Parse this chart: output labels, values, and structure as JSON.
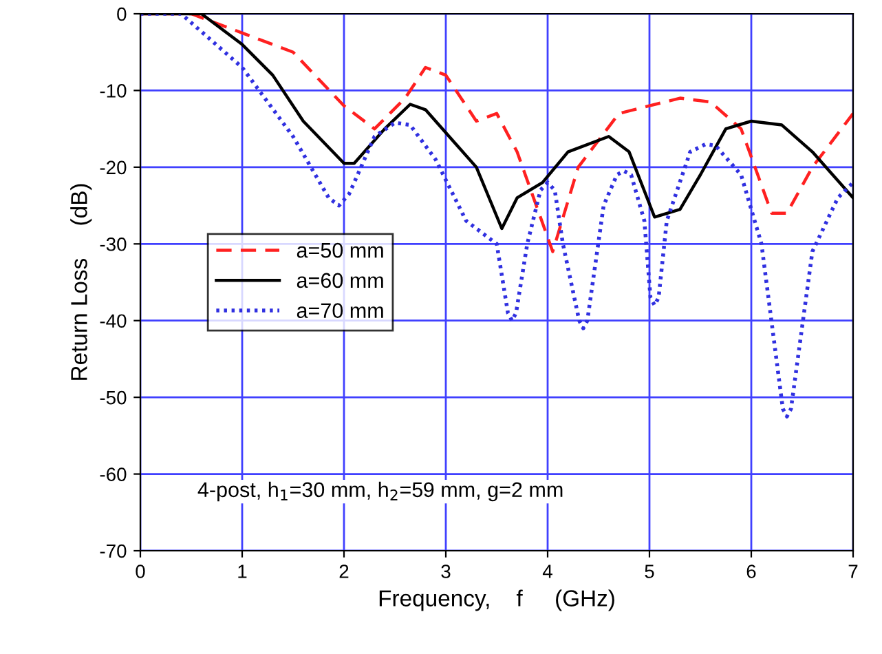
{
  "chart_data": {
    "type": "line",
    "xlabel": "Frequency,    f     (GHz)",
    "ylabel": "Return Loss     (dB)",
    "xlim": [
      0,
      7
    ],
    "ylim": [
      -70,
      0
    ],
    "xticks": [
      0,
      1,
      2,
      3,
      4,
      5,
      6,
      7
    ],
    "yticks": [
      -70,
      -60,
      -50,
      -40,
      -30,
      -20,
      -10,
      0
    ],
    "grid": true,
    "legend": "center left",
    "annotations": [
      "4-post, h$_{1}$=30 mm, h$_{2}$=59 mm, g=2 mm"
    ],
    "series": [
      {
        "name": "a=50 mm",
        "color": "#ff2020",
        "line_style": "dashed",
        "x": [
          0,
          0.5,
          1,
          1.5,
          2,
          2.3,
          2.6,
          2.8,
          3.0,
          3.3,
          3.5,
          3.7,
          4.05,
          4.3,
          4.7,
          5.0,
          5.3,
          5.6,
          5.9,
          6.2,
          6.35,
          6.6,
          7
        ],
        "values": [
          0,
          0,
          -2.5,
          -5,
          -12,
          -15,
          -11,
          -7,
          -8,
          -14,
          -13,
          -18,
          -31,
          -20,
          -13,
          -12,
          -11,
          -11.5,
          -15,
          -26,
          -26,
          -20,
          -13
        ]
      },
      {
        "name": "a=60 mm",
        "color": "#000000",
        "line_style": "solid",
        "x": [
          0,
          0.6,
          1,
          1.3,
          1.6,
          2.0,
          2.1,
          2.4,
          2.65,
          2.8,
          3.1,
          3.3,
          3.55,
          3.7,
          3.95,
          4.2,
          4.6,
          4.8,
          5.05,
          5.3,
          5.5,
          5.75,
          6.0,
          6.3,
          6.6,
          7
        ],
        "values": [
          0,
          0,
          -4,
          -8,
          -14,
          -19.5,
          -19.5,
          -15,
          -11.8,
          -12.5,
          -17,
          -20,
          -28,
          -24,
          -22,
          -18,
          -16,
          -18,
          -26.5,
          -25.5,
          -21,
          -15,
          -14,
          -14.5,
          -18,
          -24
        ]
      },
      {
        "name": "a=70 mm",
        "color": "#3030e0",
        "line_style": "dotted",
        "x": [
          0,
          0.4,
          1,
          1.5,
          1.85,
          1.95,
          2.05,
          2.3,
          2.5,
          2.65,
          2.9,
          3.2,
          3.5,
          3.61,
          3.65,
          3.69,
          3.8,
          3.93,
          4.0,
          4.07,
          4.15,
          4.31,
          4.35,
          4.39,
          4.55,
          4.68,
          4.75,
          4.82,
          4.95,
          5.01,
          5.05,
          5.09,
          5.17,
          5.4,
          5.55,
          5.65,
          5.9,
          6.1,
          6.31,
          6.35,
          6.39,
          6.6,
          6.85,
          7
        ],
        "values": [
          0,
          0,
          -7,
          -16,
          -24,
          -25,
          -23.5,
          -16,
          -14.2,
          -14.5,
          -19,
          -27,
          -30,
          -39,
          -40,
          -39,
          -30,
          -23,
          -22,
          -23,
          -30,
          -40,
          -41,
          -40,
          -25,
          -21,
          -20.5,
          -21,
          -27,
          -37,
          -38,
          -37,
          -27,
          -18,
          -17,
          -17.2,
          -21,
          -30,
          -51.5,
          -52.5,
          -51.5,
          -31,
          -24,
          -22
        ]
      }
    ]
  }
}
